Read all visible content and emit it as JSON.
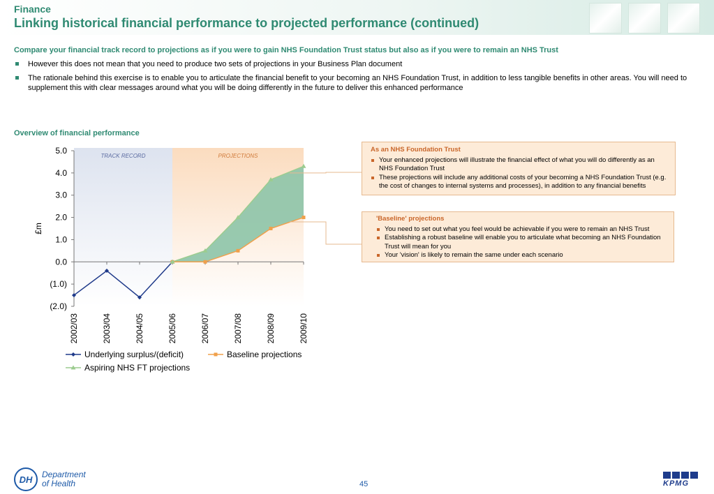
{
  "header": {
    "section": "Finance",
    "title": "Linking historical financial performance to projected performance (continued)"
  },
  "subheading": "Compare your financial track record to projections as if you were to gain NHS Foundation Trust status but also as if you were to remain an NHS Trust",
  "bullets": [
    "However this does not mean that you need to produce two sets of projections in your Business Plan document",
    "The rationale behind this exercise is to enable you to articulate the financial benefit to your becoming an NHS Foundation Trust, in addition to less tangible benefits in other areas.  You will need to supplement this with clear messages around what you will be doing differently in the future to deliver this enhanced performance"
  ],
  "overview_title": "Overview of financial performance",
  "chart_data": {
    "type": "line",
    "ylabel": "£m",
    "ylim": [
      -2.0,
      5.0
    ],
    "yticks": [
      "5.0",
      "4.0",
      "3.0",
      "2.0",
      "1.0",
      "0.0",
      "(1.0)",
      "(2.0)"
    ],
    "ytick_values": [
      5,
      4,
      3,
      2,
      1,
      0,
      -1,
      -2
    ],
    "categories": [
      "2002/03",
      "2003/04",
      "2004/05",
      "2005/06",
      "2006/07",
      "2007/08",
      "2008/09",
      "2009/10"
    ],
    "region_labels": [
      "TRACK RECORD",
      "PROJECTIONS"
    ],
    "series": [
      {
        "name": "Underlying surplus/(deficit)",
        "color": "#1f3a8a",
        "marker": "diamond",
        "values": [
          -1.5,
          -0.4,
          -1.6,
          0.0,
          null,
          null,
          null,
          null
        ]
      },
      {
        "name": "Baseline projections",
        "color": "#f0a04b",
        "marker": "square",
        "values": [
          null,
          null,
          null,
          0.0,
          0.0,
          0.5,
          1.5,
          2.0
        ]
      },
      {
        "name": "Aspiring NHS FT projections",
        "color": "#9ccc8f",
        "marker": "triangle",
        "values": [
          null,
          null,
          null,
          0.0,
          0.5,
          2.0,
          3.7,
          4.3
        ]
      }
    ],
    "fill_between_color": "#8dc4a8",
    "grid": false,
    "legend_position": "bottom"
  },
  "callouts": [
    {
      "title": "As an NHS Foundation Trust",
      "items": [
        "Your enhanced projections will illustrate the financial effect of what you will do differently as an NHS Foundation Trust",
        "These projections will include any additional costs of your becoming a NHS Foundation Trust (e.g. the cost of changes to internal systems and processes), in addition to any financial benefits"
      ]
    },
    {
      "title": "'Baseline' projections",
      "items": [
        "You need to set out what you feel would be achievable if you were to remain an NHS Trust",
        "Establishing a robust baseline will enable you to articulate what becoming an NHS Foundation Trust will mean for you",
        "Your 'vision' is likely to remain the same under each scenario"
      ]
    }
  ],
  "footer": {
    "dh_initials": "DH",
    "dh_line1": "Department",
    "dh_line2": "of Health",
    "page_number": "45",
    "kpmg": "KPMG"
  },
  "colors": {
    "accent_green": "#2f8a72",
    "callout_orange": "#c9662a",
    "callout_bg": "#fdebd8"
  }
}
